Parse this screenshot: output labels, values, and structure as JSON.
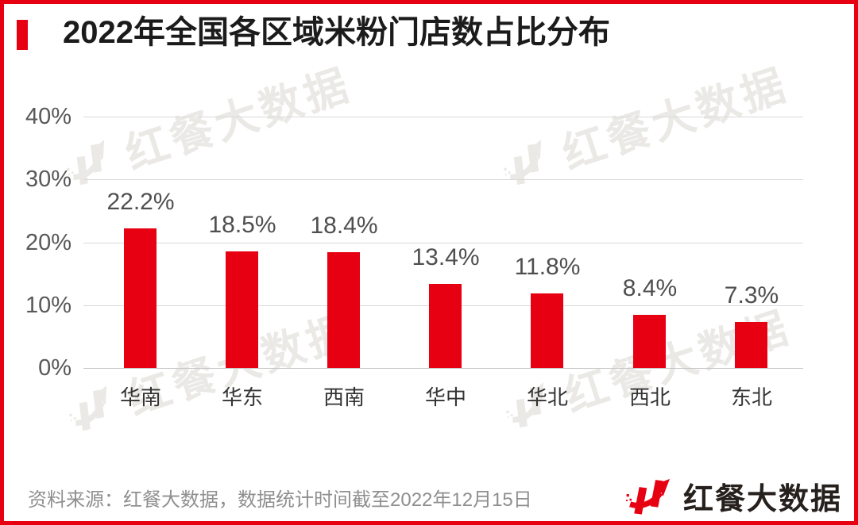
{
  "title": {
    "text": "2022年全国各区域米粉门店数占比分布"
  },
  "chart_data": {
    "type": "bar",
    "title": "2022年全国各区域米粉门店数占比分布",
    "categories": [
      "华南",
      "华东",
      "西南",
      "华中",
      "华北",
      "西北",
      "东北"
    ],
    "values": [
      22.2,
      18.5,
      18.4,
      13.4,
      11.8,
      8.4,
      7.3
    ],
    "value_labels": [
      "22.2%",
      "18.5%",
      "18.4%",
      "13.4%",
      "11.8%",
      "8.4%",
      "7.3%"
    ],
    "xlabel": "",
    "ylabel": "",
    "ylim": [
      0,
      40
    ],
    "yticks": [
      0,
      10,
      20,
      30,
      40
    ],
    "ytick_labels": [
      "0%",
      "10%",
      "20%",
      "30%",
      "40%"
    ],
    "grid": true,
    "legend": false,
    "bar_color": "#e60012"
  },
  "watermark": {
    "text": "红餐大数据",
    "icon": "hongcan-h-arrow-icon"
  },
  "footer": {
    "source_text": "资料来源：红餐大数据，数据统计时间截至2022年12月15日"
  },
  "logo": {
    "text": "红餐大数据",
    "icon": "hongcan-h-arrow-icon"
  },
  "colors": {
    "accent_red": "#e60012",
    "bar": "#e60012",
    "title_text": "#1b1b1b",
    "axis_label": "#595959",
    "value_label": "#4f4f4f",
    "category_label": "#333333",
    "gridline": "#d9d9d9",
    "baseline": "#c7c7c7",
    "footer_text": "#8f8f8f",
    "watermark": "#ebe9e6",
    "logo_text": "#27211e"
  }
}
